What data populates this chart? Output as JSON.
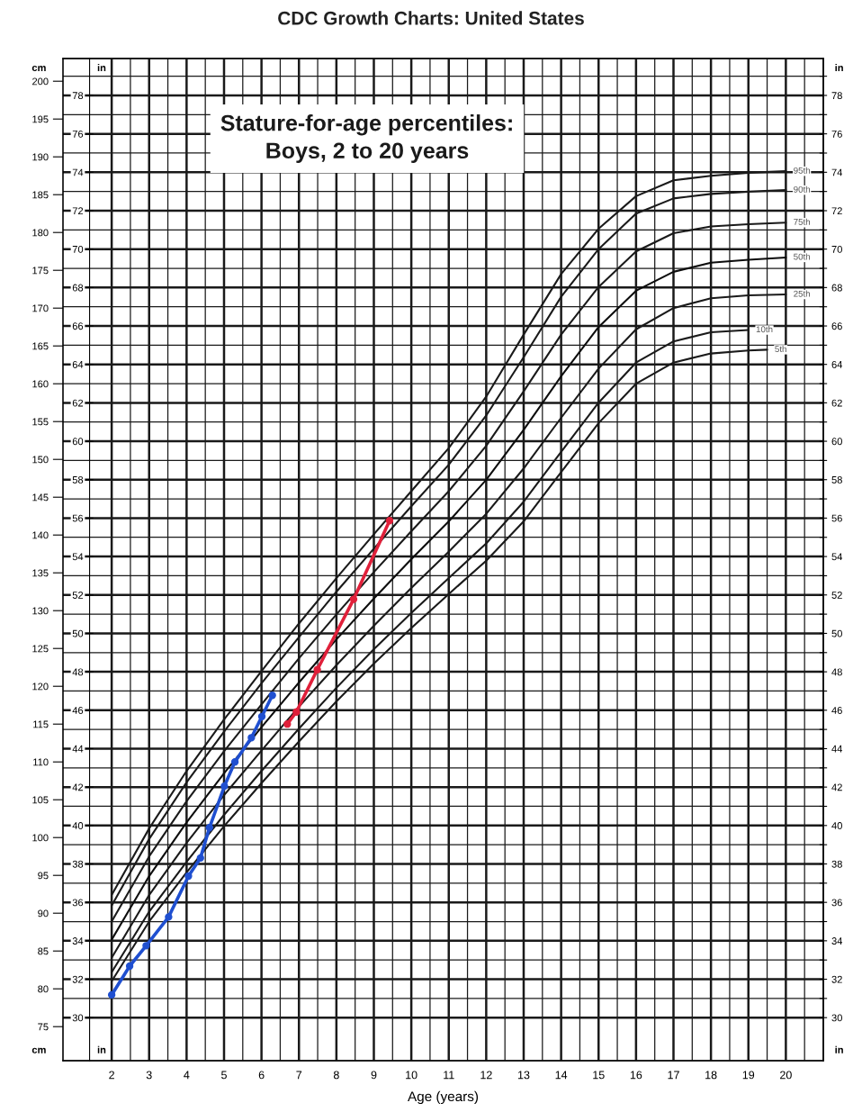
{
  "chart_data": {
    "type": "line",
    "title": "CDC Growth Charts: United States",
    "subtitle": "Stature-for-age percentiles:\nBoys, 2 to 20 years",
    "xlabel": "Age (years)",
    "ylabel": "cm",
    "y2label": "in",
    "y3label": "in",
    "xlim": [
      0.7,
      21
    ],
    "xticks": [
      2,
      {
        "value": 2.5,
        "label": null
      },
      3,
      {
        "value": 3.5,
        "label": null
      },
      4,
      {
        "value": 4.5,
        "label": null
      },
      5,
      {
        "value": 5.5,
        "label": null
      },
      6,
      {
        "value": 6.5,
        "label": null
      },
      7,
      {
        "value": 7.5,
        "label": null
      },
      8,
      {
        "value": 8.5,
        "label": null
      },
      9,
      {
        "value": 9.5,
        "label": null
      },
      10,
      {
        "value": 10.5,
        "label": null
      },
      11,
      {
        "value": 11.5,
        "label": null
      },
      12,
      {
        "value": 12.5,
        "label": null
      },
      13,
      {
        "value": 13.5,
        "label": null
      },
      14,
      {
        "value": 14.5,
        "label": null
      },
      15,
      {
        "value": 15.5,
        "label": null
      },
      16,
      {
        "value": 16.5,
        "label": null
      },
      17,
      {
        "value": 17.5,
        "label": null
      },
      18,
      {
        "value": 18.5,
        "label": null
      },
      19,
      {
        "value": 19.5,
        "label": null
      },
      20,
      {
        "value": 20.5,
        "label": null
      }
    ],
    "ylim": [
      70.5,
      203
    ],
    "yticks": [
      75,
      80,
      85,
      90,
      95,
      100,
      105,
      110,
      115,
      120,
      125,
      130,
      135,
      140,
      145,
      150,
      155,
      160,
      165,
      170,
      175,
      180,
      185,
      190,
      195,
      200
    ],
    "y2lim": [
      27.76,
      79.92
    ],
    "y2ticks": [
      30,
      {
        "value": 31,
        "label": null
      },
      32,
      {
        "value": 33,
        "label": null
      },
      34,
      {
        "value": 35,
        "label": null
      },
      36,
      {
        "value": 37,
        "label": null
      },
      38,
      {
        "value": 39,
        "label": null
      },
      40,
      {
        "value": 41,
        "label": null
      },
      42,
      {
        "value": 43,
        "label": null
      },
      44,
      {
        "value": 45,
        "label": null
      },
      46,
      {
        "value": 47,
        "label": null
      },
      48,
      {
        "value": 49,
        "label": null
      },
      50,
      {
        "value": 51,
        "label": null
      },
      52,
      {
        "value": 53,
        "label": null
      },
      54,
      {
        "value": 55,
        "label": null
      },
      56,
      {
        "value": 57,
        "label": null
      },
      58,
      {
        "value": 59,
        "label": null
      },
      60,
      {
        "value": 61,
        "label": null
      },
      62,
      {
        "value": 63,
        "label": null
      },
      64,
      {
        "value": 65,
        "label": null
      },
      66,
      {
        "value": 67,
        "label": null
      },
      68,
      {
        "value": 69,
        "label": null
      },
      70,
      {
        "value": 71,
        "label": null
      },
      72,
      {
        "value": 73,
        "label": null
      },
      74,
      {
        "value": 75,
        "label": null
      },
      76,
      {
        "value": 77,
        "label": null
      },
      78,
      {
        "value": 79,
        "label": null
      }
    ],
    "y3lim": [
      27.76,
      79.92
    ],
    "y3ticks": [
      30,
      32,
      34,
      36,
      38,
      40,
      42,
      44,
      46,
      48,
      50,
      52,
      54,
      56,
      58,
      60,
      62,
      64,
      66,
      68,
      70,
      72,
      74,
      76,
      78
    ],
    "grid": true,
    "series": [
      {
        "name": "95th",
        "color": "#1a1a1a",
        "x": [
          2,
          3,
          4,
          5,
          6,
          7,
          8,
          9,
          10,
          11,
          12,
          13,
          14,
          15,
          16,
          17,
          18,
          19,
          20
        ],
        "values": [
          92.4,
          101.2,
          108.8,
          115.6,
          122.0,
          128.3,
          134.3,
          140.1,
          145.8,
          151.5,
          158.3,
          166.5,
          174.5,
          180.5,
          184.8,
          186.9,
          187.5,
          187.9,
          188.1
        ]
      },
      {
        "name": "90th",
        "color": "#1a1a1a",
        "x": [
          2,
          3,
          4,
          5,
          6,
          7,
          8,
          9,
          10,
          11,
          12,
          13,
          14,
          15,
          16,
          17,
          18,
          19,
          20
        ],
        "values": [
          91.0,
          99.8,
          107.3,
          114.0,
          120.4,
          126.5,
          132.5,
          138.2,
          143.8,
          149.3,
          155.8,
          163.5,
          171.5,
          177.8,
          182.5,
          184.5,
          185.1,
          185.4,
          185.6
        ]
      },
      {
        "name": "75th",
        "color": "#1a1a1a",
        "x": [
          2,
          3,
          4,
          5,
          6,
          7,
          8,
          9,
          10,
          11,
          12,
          13,
          14,
          15,
          16,
          17,
          18,
          19,
          20
        ],
        "values": [
          88.9,
          97.5,
          104.8,
          111.4,
          117.6,
          123.7,
          129.5,
          135.1,
          140.5,
          145.8,
          151.8,
          159.0,
          166.5,
          172.8,
          177.5,
          179.9,
          180.8,
          181.1,
          181.3
        ]
      },
      {
        "name": "50th",
        "color": "#0d0d0d",
        "x": [
          2,
          3,
          4,
          5,
          6,
          7,
          8,
          9,
          10,
          11,
          12,
          13,
          14,
          15,
          16,
          17,
          18,
          19,
          20
        ],
        "values": [
          86.5,
          94.9,
          102.0,
          108.5,
          114.6,
          120.5,
          126.2,
          131.6,
          136.8,
          141.8,
          147.3,
          153.9,
          161.0,
          167.5,
          172.3,
          174.8,
          176.0,
          176.4,
          176.7
        ]
      },
      {
        "name": "25th",
        "color": "#1a1a1a",
        "x": [
          2,
          3,
          4,
          5,
          6,
          7,
          8,
          9,
          10,
          11,
          12,
          13,
          14,
          15,
          16,
          17,
          18,
          19,
          20
        ],
        "values": [
          84.1,
          92.4,
          99.3,
          105.6,
          111.5,
          117.3,
          122.8,
          128.0,
          133.0,
          137.8,
          142.8,
          148.8,
          155.5,
          162.0,
          167.2,
          170.0,
          171.3,
          171.7,
          171.8
        ]
      },
      {
        "name": "10th",
        "color": "#1a1a1a",
        "x": [
          2,
          3,
          4,
          5,
          6,
          7,
          8,
          9,
          10,
          11,
          12,
          13,
          14,
          15,
          16,
          17,
          18,
          19
        ],
        "values": [
          82.2,
          90.2,
          96.8,
          103.0,
          108.8,
          114.4,
          119.8,
          124.9,
          129.7,
          134.3,
          138.9,
          144.4,
          151.0,
          157.5,
          162.8,
          165.6,
          166.8,
          167.1
        ]
      },
      {
        "name": "5th",
        "color": "#1a1a1a",
        "x": [
          2,
          3,
          4,
          5,
          6,
          7,
          8,
          9,
          10,
          11,
          12,
          13,
          14,
          15,
          16,
          17,
          18,
          19,
          19.5
        ],
        "values": [
          81.0,
          88.9,
          95.4,
          101.5,
          107.2,
          112.7,
          118.0,
          123.0,
          127.7,
          132.2,
          136.6,
          141.8,
          148.3,
          154.8,
          160.0,
          162.8,
          164.0,
          164.4,
          164.5
        ]
      },
      {
        "color": "#1f4fd0",
        "marker": "circle",
        "x": [
          2.0,
          2.48,
          2.92,
          3.52,
          4.05,
          4.37,
          4.61,
          5.01,
          5.29,
          5.73,
          6.01,
          6.29
        ],
        "values": [
          79.2,
          83.0,
          85.7,
          89.5,
          94.9,
          97.3,
          101.3,
          106.8,
          110.0,
          113.2,
          116.0,
          118.8
        ]
      },
      {
        "color": "#e0203a",
        "marker": "circle",
        "x": [
          6.69,
          6.93,
          7.49,
          8.46,
          9.42
        ],
        "values": [
          115.0,
          116.6,
          122.2,
          131.5,
          141.9
        ]
      }
    ]
  }
}
